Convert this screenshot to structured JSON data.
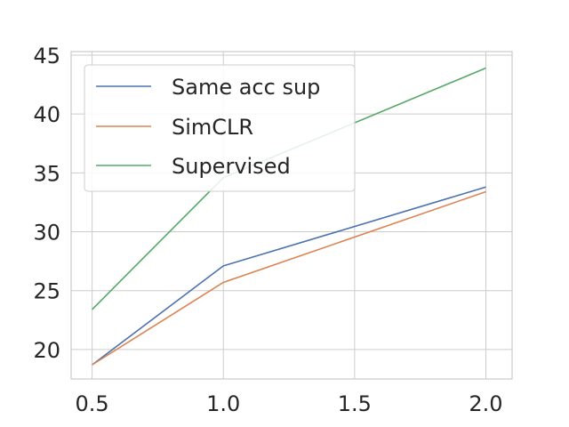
{
  "chart_data": {
    "type": "line",
    "title": "",
    "xlabel": "",
    "ylabel": "",
    "x": [
      0.5,
      1.0,
      2.0
    ],
    "xlim": [
      0.42,
      2.1
    ],
    "ylim": [
      17.5,
      45.3
    ],
    "xticks": [
      0.5,
      1.0,
      1.5,
      2.0
    ],
    "xtick_labels": [
      "0.5",
      "1.0",
      "1.5",
      "2.0"
    ],
    "yticks": [
      20,
      25,
      30,
      35,
      40,
      45
    ],
    "ytick_labels": [
      "20",
      "25",
      "30",
      "35",
      "40",
      "45"
    ],
    "grid": true,
    "legend_position": "top-left",
    "series": [
      {
        "name": "Same acc sup",
        "color": "#4c72b0",
        "values": [
          18.7,
          27.1,
          33.8
        ]
      },
      {
        "name": "SimCLR",
        "color": "#dd8452",
        "values": [
          18.7,
          25.7,
          33.4
        ]
      },
      {
        "name": "Supervised",
        "color": "#55a868",
        "values": [
          23.4,
          34.6,
          43.9
        ]
      }
    ]
  }
}
